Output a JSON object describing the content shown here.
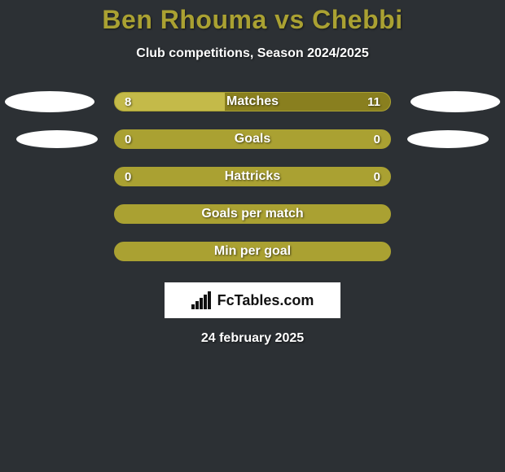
{
  "background_color": "#2c3034",
  "title": {
    "player1": "Ben Rhouma",
    "vs": " vs ",
    "player2": "Chebbi",
    "color": "#aaa132"
  },
  "subtitle": "Club competitions, Season 2024/2025",
  "ellipse_color": "#ffffff",
  "bar_style": {
    "border_color": "#aaa132",
    "empty_color": "#aaa132",
    "fill_left_color": "#c4ba49",
    "fill_right_color": "#897f1f"
  },
  "stats": [
    {
      "label": "Matches",
      "left_val": "8",
      "right_val": "11",
      "left_pct": 40,
      "right_pct": 60,
      "show_vals": true,
      "show_ellipses": "big"
    },
    {
      "label": "Goals",
      "left_val": "0",
      "right_val": "0",
      "left_pct": 0,
      "right_pct": 0,
      "show_vals": true,
      "show_ellipses": "small"
    },
    {
      "label": "Hattricks",
      "left_val": "0",
      "right_val": "0",
      "left_pct": 0,
      "right_pct": 0,
      "show_vals": true,
      "show_ellipses": "none"
    },
    {
      "label": "Goals per match",
      "left_val": "",
      "right_val": "",
      "left_pct": 0,
      "right_pct": 0,
      "show_vals": false,
      "show_ellipses": "none"
    },
    {
      "label": "Min per goal",
      "left_val": "",
      "right_val": "",
      "left_pct": 0,
      "right_pct": 0,
      "show_vals": false,
      "show_ellipses": "none"
    }
  ],
  "logo": {
    "prefix": "Fc",
    "suffix": "Tables.com"
  },
  "date": "24 february 2025"
}
